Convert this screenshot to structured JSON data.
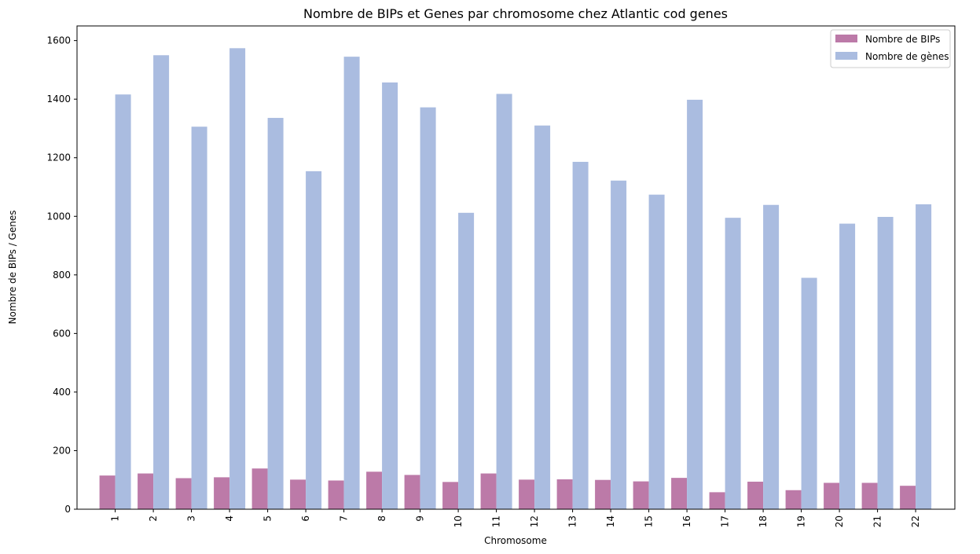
{
  "chart_data": {
    "type": "bar",
    "title": "Nombre de BIPs et Genes par chromosome chez Atlantic cod genes",
    "xlabel": "Chromosome",
    "ylabel": "Nombre de BIPs / Genes",
    "categories": [
      "1",
      "2",
      "3",
      "4",
      "5",
      "6",
      "7",
      "8",
      "9",
      "10",
      "11",
      "12",
      "13",
      "14",
      "15",
      "16",
      "17",
      "18",
      "19",
      "20",
      "21",
      "22"
    ],
    "ylim": [
      0,
      1650
    ],
    "yticks": [
      0,
      200,
      400,
      600,
      800,
      1000,
      1200,
      1400,
      1600
    ],
    "grid": false,
    "legend_position": "top-right",
    "series": [
      {
        "name": "Nombre de BIPs",
        "color": "#bc7aa8",
        "values": [
          115,
          122,
          106,
          109,
          139,
          101,
          98,
          128,
          117,
          93,
          122,
          101,
          102,
          100,
          95,
          107,
          58,
          94,
          65,
          90,
          90,
          80
        ]
      },
      {
        "name": "Nombre de gènes",
        "color": "#aabce0",
        "values": [
          1416,
          1550,
          1306,
          1574,
          1336,
          1154,
          1545,
          1457,
          1372,
          1012,
          1418,
          1310,
          1186,
          1122,
          1074,
          1398,
          995,
          1039,
          790,
          975,
          998,
          1041
        ]
      }
    ]
  }
}
